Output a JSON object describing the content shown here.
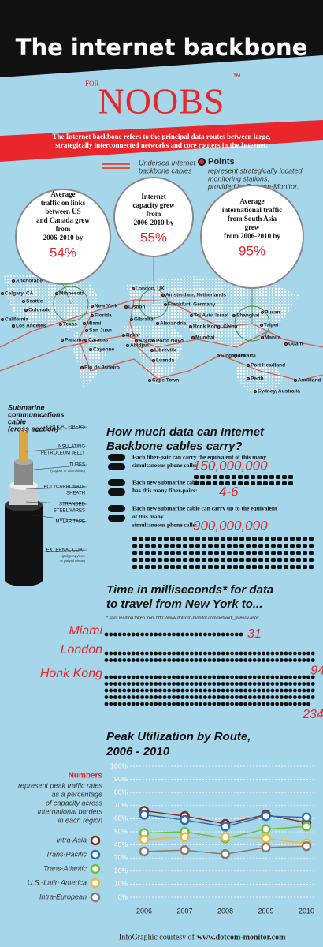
{
  "header": {
    "title": "The internet backbone",
    "for": "FOR",
    "noobs": "NOOBS",
    "tm": "™"
  },
  "intro": [
    "The Internet backbone refers to the principal data routes between large,",
    "strategically interconnected networks and core routers in the Internet."
  ],
  "legend": {
    "cables": [
      "Undersea Internet",
      "backbone cables"
    ],
    "points_title": "Points",
    "points": [
      "represent strategically located",
      "monitoring stations,",
      "provided by Dotcom-Monitor."
    ]
  },
  "bubbles": [
    {
      "lines": [
        "Average",
        "traffic on links",
        "between US",
        "and Canada grew",
        "from",
        "2006-2010 by"
      ],
      "value": "54%"
    },
    {
      "lines": [
        "Internet",
        "capacity grew",
        "from",
        "2006-2010 by"
      ],
      "value": "55%"
    },
    {
      "lines": [
        "Average",
        "international traffic",
        "from South Asia",
        "grew",
        "from 2006-2010 by"
      ],
      "value": "95%"
    }
  ],
  "map": {
    "cities": [
      "Anchorage",
      "Calgary, CA",
      "Minnesota",
      "Seattle",
      "Colorado",
      "New York",
      "Florida",
      "California",
      "Texas",
      "Los Angeles",
      "Miami",
      "Panama",
      "San Juan",
      "Caracas",
      "Cayenne",
      "Rio de Janeiro",
      "London, UK",
      "Lisbon",
      "Amsterdam, Netherlands",
      "Frankfurt, Germany",
      "Gibraltar",
      "Alexandria",
      "Tel Aviv, Israel",
      "Dakar",
      "Accra",
      "Porto Novo",
      "Abidjan",
      "Libreville",
      "Luanda",
      "Cape Town",
      "Mumbai",
      "Honk Kong, China",
      "Shanghai",
      "Pusan",
      "Taipei",
      "Manila",
      "Guam",
      "Singapore",
      "Jakarta",
      "Port Headland",
      "Perth",
      "Sydney, Australia",
      "Auckland"
    ]
  },
  "cable": {
    "title": [
      "Submarine",
      "communications",
      "cable",
      "(cross section)"
    ],
    "layers": [
      {
        "name": [
          "OPTICAL FIBERS"
        ]
      },
      {
        "name": [
          "INSULATING",
          "PETROLEUM JELLY"
        ]
      },
      {
        "name": [
          "TUBES"
        ],
        "note": [
          "(copper or aluminium)"
        ]
      },
      {
        "name": [
          "POLYCARBONATE",
          "SHEATH"
        ]
      },
      {
        "name": [
          "STRANDED",
          "STEEL WIRES"
        ]
      },
      {
        "name": [
          "MYLAR TAPE"
        ]
      },
      {
        "name": [
          "EXTERNAL COAT"
        ],
        "note": [
          "(polypropylene",
          "or polyethylene)"
        ]
      }
    ]
  },
  "capacity": {
    "title": [
      "How much data can Internet",
      "Backbone cables carry?"
    ],
    "facts": [
      {
        "lines": [
          "Each fiber-pair can carry the equivalent of this many",
          "simultaneous phone calls:"
        ],
        "value": "150,000,000"
      },
      {
        "lines": [
          "Each new submarine cable",
          "has this many fiber-pairs:"
        ],
        "value": "4-6"
      },
      {
        "lines": [
          "Each new submarine cable can carry up to the equivalent",
          "of this many",
          "simultaneous phone calls:"
        ],
        "value": "900,000,000"
      }
    ]
  },
  "latency": {
    "title": [
      "Time in milliseconds* for data",
      "to travel from New York to..."
    ],
    "footnote": "* spot reading taken from http://www.dotcom-monitor.com/network_latency.aspx",
    "routes": [
      {
        "city": "Miami",
        "value": 31
      },
      {
        "city": "London",
        "value": 94
      },
      {
        "city": "Honk Kong",
        "value": 234
      }
    ]
  },
  "chart_data": {
    "type": "line",
    "title": "Peak Utilization by Route,",
    "subtitle": "2006 - 2010",
    "note_title": "Numbers",
    "note": [
      "represent peak traffic rates",
      "as a percentage",
      "of capacity across",
      "International borders",
      "in each region"
    ],
    "categories": [
      "2006",
      "2007",
      "2008",
      "2009",
      "2010"
    ],
    "ylim": [
      0,
      100
    ],
    "yticks": [
      {
        "value": 0,
        "label": "0%"
      },
      {
        "value": 10,
        "label": "10%"
      },
      {
        "value": 20,
        "label": "20%"
      },
      {
        "value": 30,
        "label": "30%"
      },
      {
        "value": 40,
        "label": "40%"
      },
      {
        "value": 50,
        "label": "50%"
      },
      {
        "value": 60,
        "label": "60%"
      },
      {
        "value": 70,
        "label": "70%"
      },
      {
        "value": 80,
        "label": "80%"
      },
      {
        "value": 90,
        "label": "90%"
      },
      {
        "value": 100,
        "label": "100%"
      }
    ],
    "grid": true,
    "series": [
      {
        "name": "Intra-Asia",
        "color": "#8b2a1a",
        "values": [
          66,
          62,
          56,
          63,
          57
        ]
      },
      {
        "name": "Trans-Pacific",
        "color": "#2a6fb5",
        "values": [
          63,
          59,
          54,
          62,
          61
        ]
      },
      {
        "name": "Trans-Atlantic",
        "color": "#6fbf3a",
        "values": [
          49,
          50,
          45,
          52,
          54
        ]
      },
      {
        "name": "U.S.-Latin America",
        "color": "#f2b731",
        "values": [
          44,
          46,
          46,
          45,
          41
        ]
      },
      {
        "name": "Intra-European",
        "color": "#8a7a6a",
        "values": [
          35,
          36,
          33,
          38,
          39
        ]
      }
    ]
  },
  "footer": {
    "prefix": "InfoGraphic courtesy of",
    "site": "www.dotcom-monitor.com"
  }
}
